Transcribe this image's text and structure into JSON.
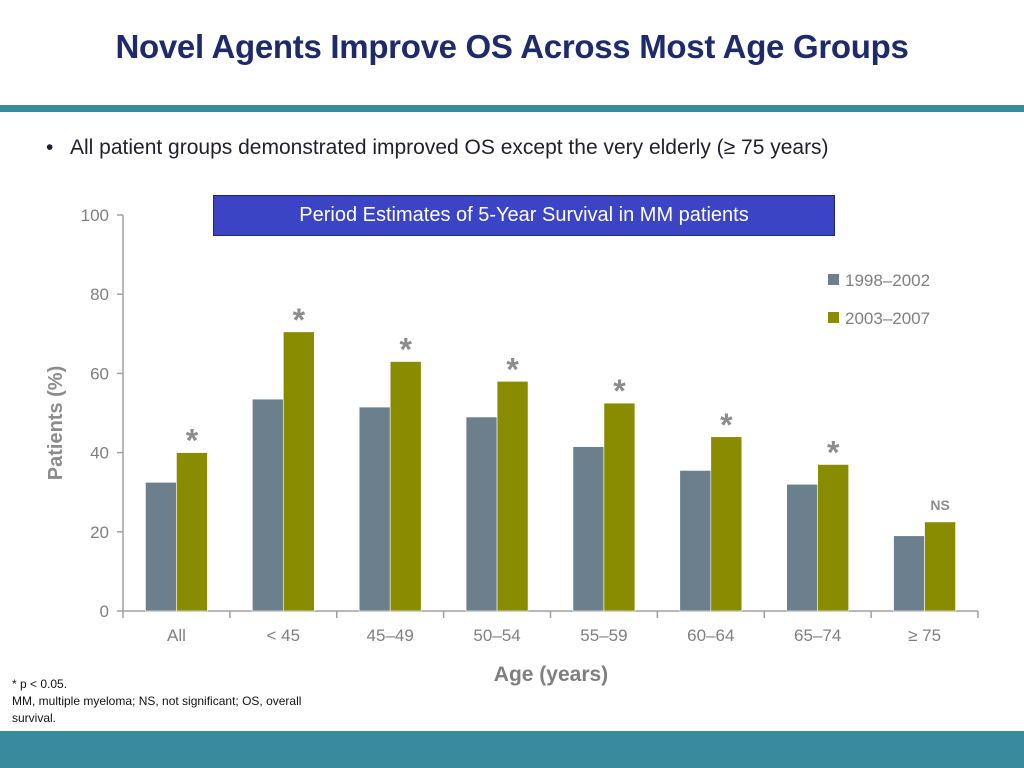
{
  "slide": {
    "title": "Novel Agents Improve OS Across Most Age Groups",
    "bullet": "All patient groups demonstrated improved OS except the very elderly (≥ 75 years)",
    "footnote_line1": "* p < 0.05.",
    "footnote_line2": "MM, multiple myeloma; NS, not significant; OS, overall survival.",
    "accent_color": "#3a8a9e",
    "title_color": "#1f2a6b"
  },
  "chart_data": {
    "type": "bar",
    "title": "Period Estimates of 5-Year Survival in MM patients",
    "xlabel": "Age (years)",
    "ylabel": "Patients (%)",
    "ylim": [
      0,
      100
    ],
    "yticks": [
      0,
      20,
      40,
      60,
      80,
      100
    ],
    "categories": [
      "All",
      "< 45",
      "45–49",
      "50–54",
      "55–59",
      "60–64",
      "65–74",
      "≥ 75"
    ],
    "series": [
      {
        "name": "1998–2002",
        "color": "#6b808c",
        "values": [
          32.5,
          53.5,
          51.5,
          49,
          41.5,
          35.5,
          32,
          19
        ]
      },
      {
        "name": "2003–2007",
        "color": "#8a8c00",
        "values": [
          40,
          70.5,
          63,
          58,
          52.5,
          44,
          37,
          22.5
        ]
      }
    ],
    "significance": [
      "*",
      "*",
      "*",
      "*",
      "*",
      "*",
      "*",
      "NS"
    ],
    "legend_position": "top-right",
    "grid": false
  }
}
